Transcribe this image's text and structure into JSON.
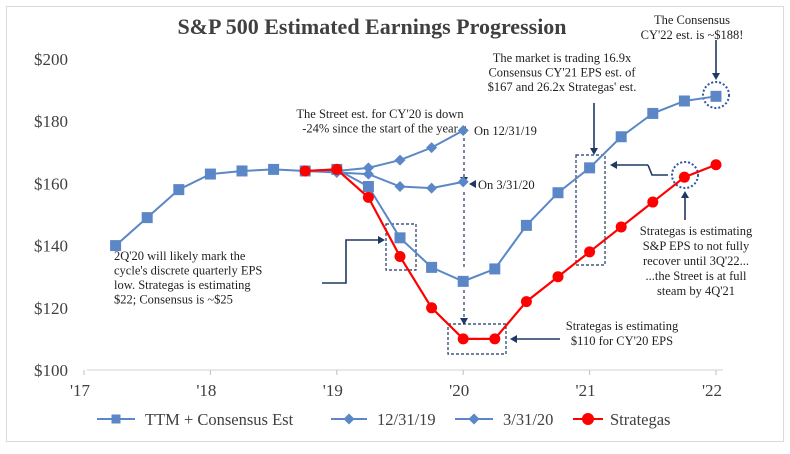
{
  "chart_data": {
    "type": "line",
    "title": "S&P 500 Estimated Earnings Progression",
    "xlabel": "",
    "ylabel": "",
    "ylim": [
      100,
      200
    ],
    "xlim": [
      2017,
      2022
    ],
    "y_ticks": [
      100,
      120,
      140,
      160,
      180,
      200
    ],
    "y_tick_labels": [
      "$100",
      "$120",
      "$140",
      "$160",
      "$180",
      "$200"
    ],
    "x_ticks": [
      2017,
      2018,
      2019,
      2020,
      2021,
      2022
    ],
    "x_tick_labels": [
      "'17",
      "'18",
      "'19",
      "'20",
      "'21",
      "'22"
    ],
    "grid": false,
    "legend_position": "bottom",
    "series": [
      {
        "name": "TTM + Consensus Est",
        "color": "#5b87c7",
        "marker": "square",
        "points": [
          [
            2017.25,
            140
          ],
          [
            2017.5,
            149
          ],
          [
            2017.75,
            158
          ],
          [
            2018.0,
            163
          ],
          [
            2018.25,
            164
          ],
          [
            2018.5,
            164.5
          ],
          [
            2018.75,
            164
          ],
          [
            2019.0,
            164.5
          ],
          [
            2019.25,
            159
          ],
          [
            2019.5,
            142.5
          ],
          [
            2019.75,
            133
          ],
          [
            2020.0,
            128.5
          ],
          [
            2020.25,
            132.5
          ],
          [
            2020.5,
            146.5
          ],
          [
            2020.75,
            157
          ],
          [
            2021.0,
            165
          ],
          [
            2021.25,
            175
          ],
          [
            2021.5,
            182.5
          ],
          [
            2021.75,
            186.5
          ],
          [
            2022.0,
            188
          ]
        ]
      },
      {
        "name": "12/31/19",
        "color": "#5b87c7",
        "marker": "diamond",
        "points": [
          [
            2018.75,
            164
          ],
          [
            2019.0,
            164
          ],
          [
            2019.25,
            165
          ],
          [
            2019.5,
            167.5
          ],
          [
            2019.75,
            171.5
          ],
          [
            2020.0,
            177
          ]
        ]
      },
      {
        "name": "3/31/20",
        "color": "#5b87c7",
        "marker": "diamond",
        "points": [
          [
            2018.75,
            164
          ],
          [
            2019.0,
            163.5
          ],
          [
            2019.25,
            163
          ],
          [
            2019.5,
            159
          ],
          [
            2019.75,
            158.5
          ],
          [
            2020.0,
            160.5
          ]
        ]
      },
      {
        "name": "Strategas",
        "color": "#ff0000",
        "marker": "circle",
        "points": [
          [
            2018.75,
            164
          ],
          [
            2019.0,
            164.5
          ],
          [
            2019.25,
            155.5
          ],
          [
            2019.5,
            136.5
          ],
          [
            2019.75,
            120
          ],
          [
            2020.0,
            110
          ],
          [
            2020.25,
            110
          ],
          [
            2020.5,
            122
          ],
          [
            2020.75,
            130
          ],
          [
            2021.0,
            138
          ],
          [
            2021.25,
            146
          ],
          [
            2021.5,
            154
          ],
          [
            2021.75,
            162
          ],
          [
            2022.0,
            166
          ]
        ]
      }
    ],
    "annotations": {
      "consensus": [
        "The Consensus",
        "CY'22 est. is ~$188!"
      ],
      "market": [
        "The market is trading 16.9x",
        "Consensus CY'21 EPS est. of",
        "$167 and 26.2x Strategas' est."
      ],
      "street": [
        "The Street est. for CY'20 is down",
        "-24% since the start of the year"
      ],
      "on_1231": "On 12/31/19",
      "on_0331": "On 3/31/20",
      "low": [
        "2Q'20 will likely mark the",
        "cycle's discrete quarterly EPS",
        "low.  Strategas is estimating",
        "$22; Consensus is ~$25"
      ],
      "strategas_est": [
        "Strategas is estimating",
        "S&P EPS to not fully",
        "recover until 3Q'22...",
        "...the Street is at full",
        "steam by 4Q'21"
      ],
      "strategas_110": [
        "Strategas is estimating",
        "$110 for CY'20 EPS"
      ]
    }
  }
}
